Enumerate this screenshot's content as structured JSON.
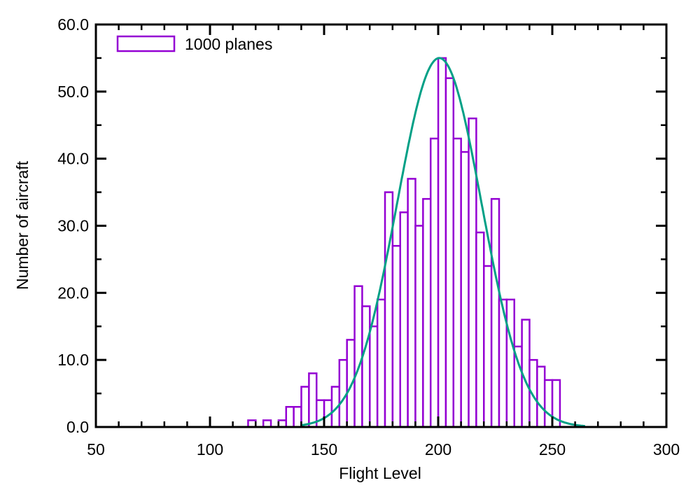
{
  "chart_data": {
    "type": "bar",
    "subtype": "histogram-with-gaussian-fit",
    "title": "",
    "xlabel": "Flight Level",
    "ylabel": "Number of aircraft",
    "xlim": [
      50,
      300
    ],
    "ylim": [
      0,
      60
    ],
    "grid": false,
    "legend_position": "top-left-inside",
    "legend_entries": [
      {
        "label": "1000 planes",
        "swatch": "open-rectangle",
        "color": "#9400D3"
      }
    ],
    "x_axis": {
      "major_ticks": [
        50,
        100,
        150,
        200,
        250,
        300
      ],
      "tick_labels": [
        "50",
        "100",
        "150",
        "200",
        "250",
        "300"
      ],
      "minor_tick_step": 10,
      "mirrored_on_top": true
    },
    "y_axis": {
      "major_ticks": [
        0,
        10,
        20,
        30,
        40,
        50,
        60
      ],
      "tick_labels": [
        "0.0",
        "10.0",
        "20.0",
        "30.0",
        "40.0",
        "50.0",
        "60.0"
      ],
      "minor_tick_step": 5,
      "mirrored_on_right": true
    },
    "histogram": {
      "series_name": "1000 planes",
      "bar_style": "open (white fill, purple outline)",
      "color": "#9400D3",
      "fill": "#ffffff",
      "bin_start": 116.7,
      "bin_width": 3.333,
      "counts": [
        1,
        0,
        1,
        0,
        1,
        3,
        3,
        6,
        8,
        4,
        4,
        6,
        10,
        13,
        21,
        18,
        15,
        19,
        35,
        27,
        32,
        37,
        30,
        34,
        43,
        55,
        52,
        43,
        41,
        46,
        29,
        24,
        34,
        19,
        19,
        12,
        16,
        10,
        9,
        7,
        7
      ]
    },
    "fit_curve": {
      "shape": "gaussian",
      "amplitude": 55,
      "mean": 200.5,
      "sigma": 18.5,
      "x_from": 140,
      "x_to": 264,
      "color": "#00A086"
    }
  },
  "colors": {
    "bars": "#9400D3",
    "curve": "#00A086",
    "axis": "#000000",
    "background": "#ffffff"
  }
}
